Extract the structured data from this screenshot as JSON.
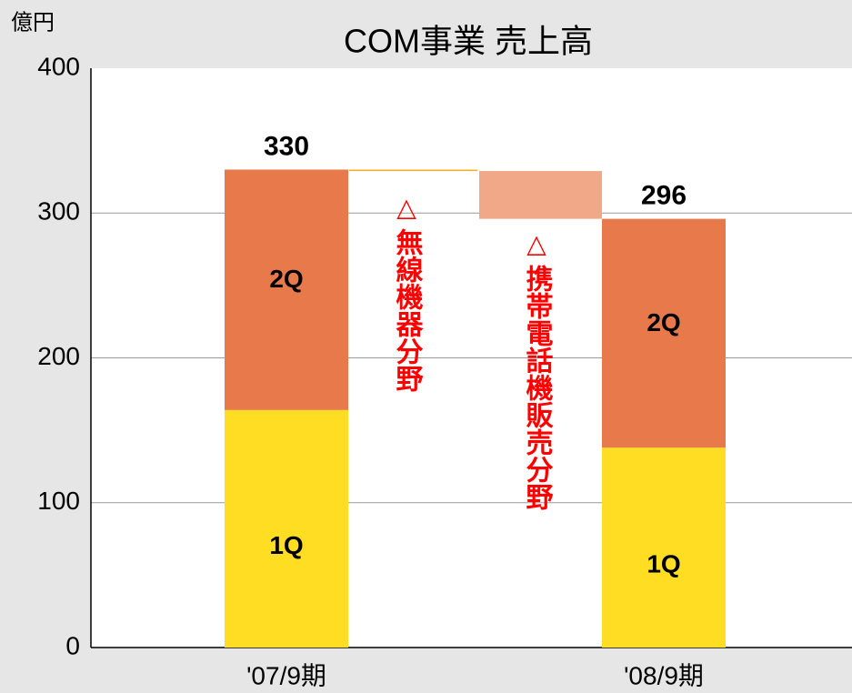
{
  "chart_data": {
    "type": "waterfall",
    "title": "COM事業 売上高",
    "y_unit": "億円",
    "categories": [
      "'07/9期",
      "'08/9期"
    ],
    "series": [
      {
        "name": "1Q",
        "color": "#ffdd22",
        "values": [
          164,
          138
        ]
      },
      {
        "name": "2Q",
        "color": "#e8794a",
        "values": [
          166,
          158
        ]
      }
    ],
    "totals": [
      330,
      296
    ],
    "bridge": [
      {
        "marker": "△",
        "label": "無線機器分野",
        "value": 1,
        "color": "#f0b030"
      },
      {
        "marker": "△",
        "label": "携帯電話機販売分野",
        "value": 33,
        "color": "#f0a888"
      }
    ],
    "ylim": [
      0,
      400
    ],
    "yticks": [
      0,
      100,
      200,
      300,
      400
    ],
    "grid": true
  }
}
